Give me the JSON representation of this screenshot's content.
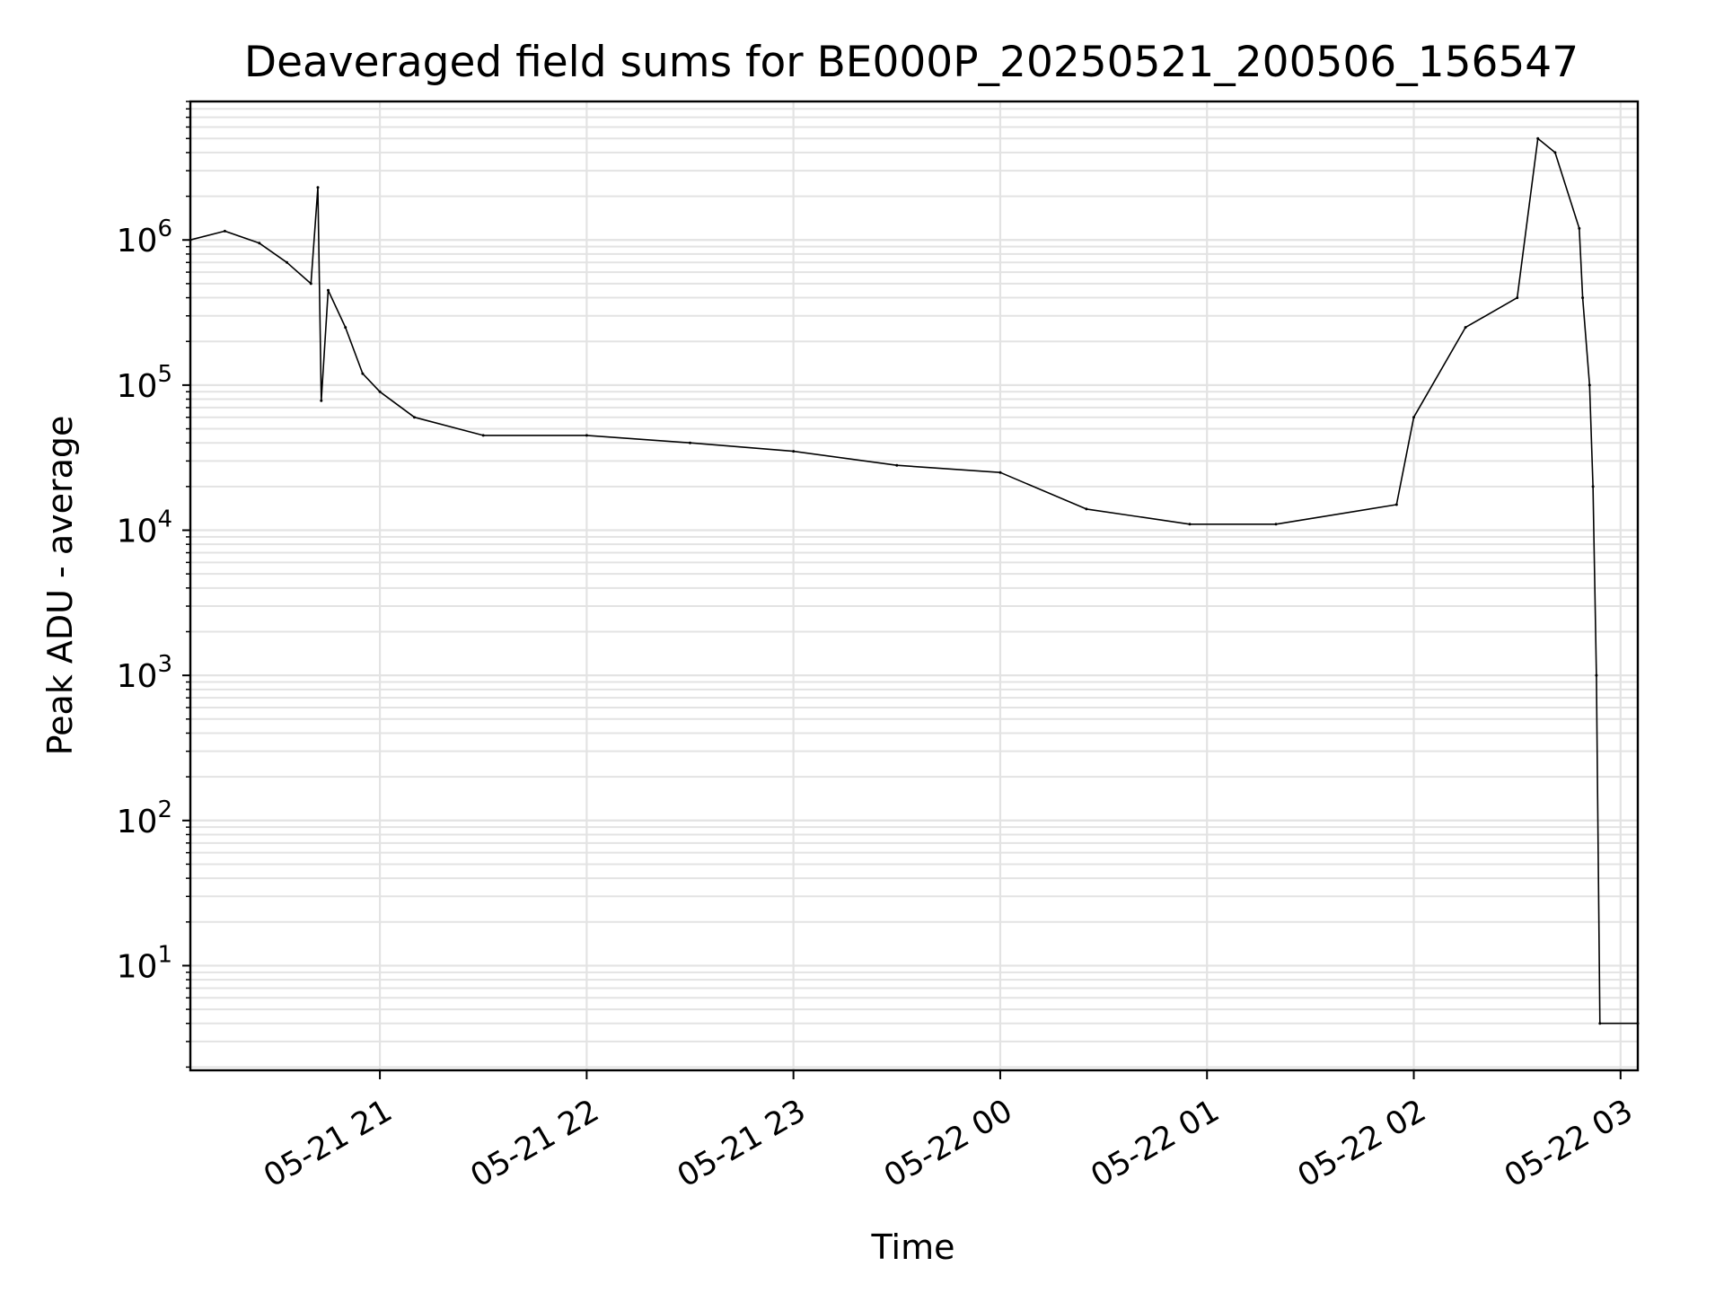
{
  "chart_data": {
    "type": "line",
    "title": "Deaveraged field sums for BE000P_20250521_200506_156547",
    "xlabel": "Time",
    "ylabel": "Peak ADU - average",
    "xscale": "time",
    "yscale": "log",
    "xlim": [
      "2025-05-21 20:05",
      "2025-05-22 03:05"
    ],
    "ylim": [
      1.9,
      9000000
    ],
    "grid": true,
    "x_ticks": [
      "05-21 21",
      "05-21 22",
      "05-21 23",
      "05-22 00",
      "05-22 01",
      "05-22 02",
      "05-22 03"
    ],
    "y_ticks": [
      {
        "base": "10",
        "exp": "1",
        "value": 10
      },
      {
        "base": "10",
        "exp": "2",
        "value": 100
      },
      {
        "base": "10",
        "exp": "3",
        "value": 1000
      },
      {
        "base": "10",
        "exp": "4",
        "value": 10000
      },
      {
        "base": "10",
        "exp": "5",
        "value": 100000
      },
      {
        "base": "10",
        "exp": "6",
        "value": 1000000
      }
    ],
    "series": [
      {
        "color": "#000000",
        "points": [
          [
            "2025-05-21 20:05",
            1000000
          ],
          [
            "2025-05-21 20:15",
            1150000
          ],
          [
            "2025-05-21 20:25",
            950000
          ],
          [
            "2025-05-21 20:33",
            700000
          ],
          [
            "2025-05-21 20:40",
            500000
          ],
          [
            "2025-05-21 20:42",
            2300000
          ],
          [
            "2025-05-21 20:43",
            78000
          ],
          [
            "2025-05-21 20:45",
            450000
          ],
          [
            "2025-05-21 20:50",
            250000
          ],
          [
            "2025-05-21 20:55",
            120000
          ],
          [
            "2025-05-21 21:00",
            90000
          ],
          [
            "2025-05-21 21:10",
            60000
          ],
          [
            "2025-05-21 21:30",
            45000
          ],
          [
            "2025-05-21 22:00",
            45000
          ],
          [
            "2025-05-21 22:30",
            40000
          ],
          [
            "2025-05-21 23:00",
            35000
          ],
          [
            "2025-05-21 23:30",
            28000
          ],
          [
            "2025-05-22 00:00",
            25000
          ],
          [
            "2025-05-22 00:25",
            14000
          ],
          [
            "2025-05-22 00:55",
            11000
          ],
          [
            "2025-05-22 01:20",
            11000
          ],
          [
            "2025-05-22 01:55",
            15000
          ],
          [
            "2025-05-22 02:00",
            60000
          ],
          [
            "2025-05-22 02:15",
            250000
          ],
          [
            "2025-05-22 02:30",
            400000
          ],
          [
            "2025-05-22 02:36",
            5000000
          ],
          [
            "2025-05-22 02:41",
            4000000
          ],
          [
            "2025-05-22 02:48",
            1200000
          ],
          [
            "2025-05-22 02:49",
            400000
          ],
          [
            "2025-05-22 02:51",
            100000
          ],
          [
            "2025-05-22 02:52",
            20000
          ],
          [
            "2025-05-22 02:53",
            1000
          ],
          [
            "2025-05-22 02:54",
            4
          ],
          [
            "2025-05-22 03:05",
            4
          ]
        ]
      }
    ]
  }
}
